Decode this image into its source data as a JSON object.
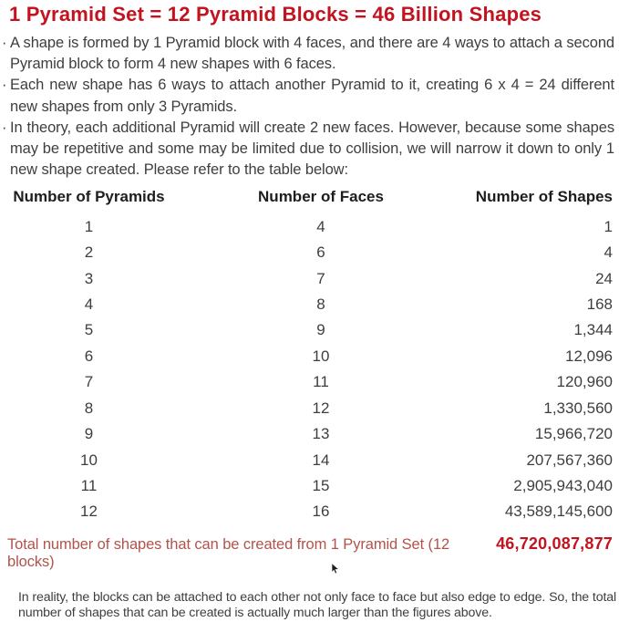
{
  "title": "1 Pyramid Set = 12 Pyramid Blocks = 46 Billion Shapes",
  "bullet_char": "·",
  "bullets": [
    "A shape is formed by 1 Pyramid block with 4 faces, and there are 4 ways to attach a second Pyramid block to form 4 new shapes with 6 faces.",
    "Each new shape has 6 ways to attach another Pyramid to it, creating 6 x 4 = 24 different new shapes from only 3 Pyramids.",
    "In theory, each additional Pyramid will create 2 new faces. However, because some shapes may be repetitive and some may be limited due to collision, we will narrow it down to only 1 new shape created. Please refer to the table below:"
  ],
  "table": {
    "headers": [
      "Number of Pyramids",
      "Number of Faces",
      "Number of Shapes"
    ],
    "rows": [
      [
        "1",
        "4",
        "1"
      ],
      [
        "2",
        "6",
        "4"
      ],
      [
        "3",
        "7",
        "24"
      ],
      [
        "4",
        "8",
        "168"
      ],
      [
        "5",
        "9",
        "1,344"
      ],
      [
        "6",
        "10",
        "12,096"
      ],
      [
        "7",
        "11",
        "120,960"
      ],
      [
        "8",
        "12",
        "1,330,560"
      ],
      [
        "9",
        "13",
        "15,966,720"
      ],
      [
        "10",
        "14",
        "207,567,360"
      ],
      [
        "11",
        "15",
        "2,905,943,040"
      ],
      [
        "12",
        "16",
        "43,589,145,600"
      ]
    ]
  },
  "total": {
    "label": "Total number of shapes that can be created from 1 Pyramid Set (12 blocks)",
    "value": "46,720,087,877"
  },
  "footer": "In reality, the blocks can be attached to each other not only face to face but also edge to edge. So, the total number of shapes that can be created is actually much larger than the figures above.",
  "colors": {
    "title_red": "#c2131f",
    "total_label_red": "#b2534b",
    "total_value_red": "#c2131f",
    "body_text": "#3e3e3e",
    "header_text": "#1d1d1d"
  }
}
